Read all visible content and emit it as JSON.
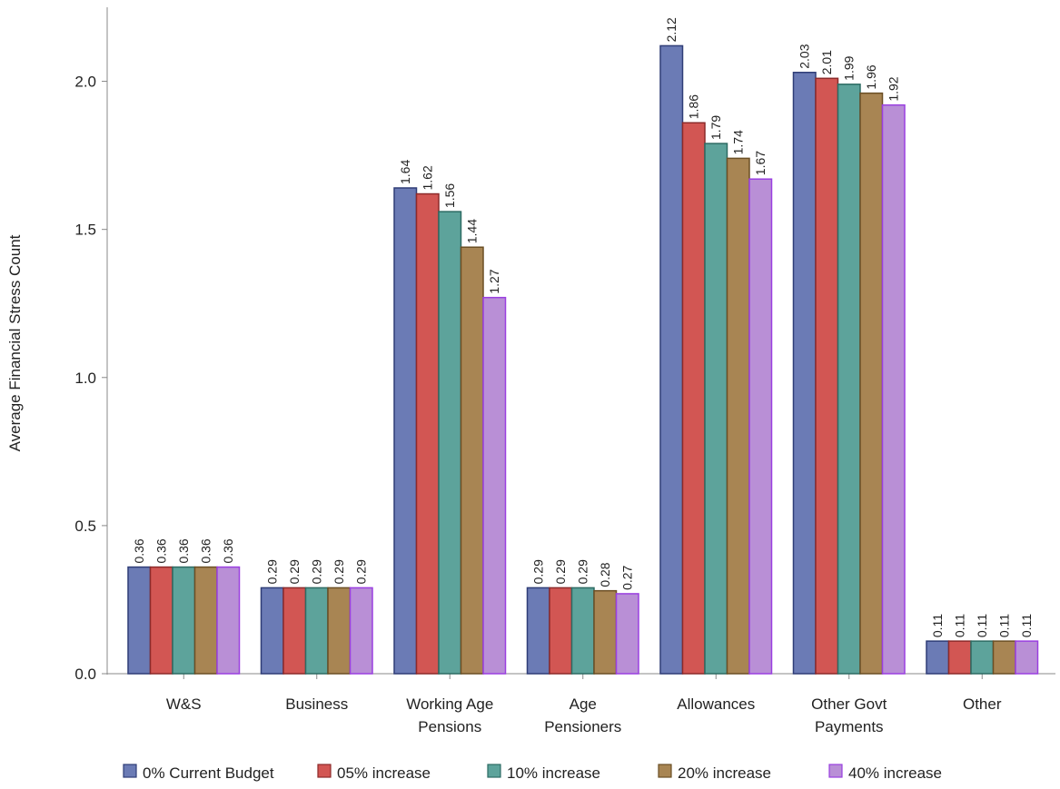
{
  "chart_data": {
    "type": "bar",
    "title": "",
    "xlabel": "",
    "ylabel": "Average Financial Stress Count",
    "ylim": [
      0,
      2.25
    ],
    "yticks": [
      0.0,
      0.5,
      1.0,
      1.5,
      2.0
    ],
    "ytick_labels": [
      "0.0",
      "0.5",
      "1.0",
      "1.5",
      "2.0"
    ],
    "grid": false,
    "legend_position": "bottom",
    "categories": [
      [
        "W&S"
      ],
      [
        "Business"
      ],
      [
        "Working Age",
        "Pensions"
      ],
      [
        "Age",
        "Pensioners"
      ],
      [
        "Allowances"
      ],
      [
        "Other Govt",
        "Payments"
      ],
      [
        "Other"
      ]
    ],
    "series": [
      {
        "name": "0% Current Budget",
        "color": "#6b7bb5",
        "values": [
          0.36,
          0.29,
          1.64,
          0.29,
          2.12,
          2.03,
          0.11
        ],
        "labels": [
          "0.36",
          "0.29",
          "1.64",
          "0.29",
          "2.12",
          "2.03",
          "0.11"
        ]
      },
      {
        "name": "05% increase",
        "color": "#d25653",
        "values": [
          0.36,
          0.29,
          1.62,
          0.29,
          1.86,
          2.01,
          0.11
        ],
        "labels": [
          "0.36",
          "0.29",
          "1.62",
          "0.29",
          "1.86",
          "2.01",
          "0.11"
        ]
      },
      {
        "name": "10% increase",
        "color": "#5da39b",
        "values": [
          0.36,
          0.29,
          1.56,
          0.29,
          1.79,
          1.99,
          0.11
        ],
        "labels": [
          "0.36",
          "0.29",
          "1.56",
          "0.29",
          "1.79",
          "1.99",
          "0.11"
        ]
      },
      {
        "name": "20% increase",
        "color": "#a88553",
        "values": [
          0.36,
          0.29,
          1.44,
          0.28,
          1.74,
          1.96,
          0.11
        ],
        "labels": [
          "0.36",
          "0.29",
          "1.44",
          "0.28",
          "1.74",
          "1.96",
          "0.11"
        ]
      },
      {
        "name": "40% increase",
        "color": "#b98fd6",
        "values": [
          0.36,
          0.29,
          1.27,
          0.27,
          1.67,
          1.92,
          0.11
        ],
        "labels": [
          "0.36",
          "0.29",
          "1.27",
          "0.27",
          "1.67",
          "1.92",
          "0.11"
        ]
      }
    ]
  },
  "style": {
    "axis_color": "#888888",
    "bar_border_colors": [
      "#2f3d77",
      "#8c2a2a",
      "#2d6b63",
      "#6b4f25",
      "#9a3fe0"
    ]
  }
}
